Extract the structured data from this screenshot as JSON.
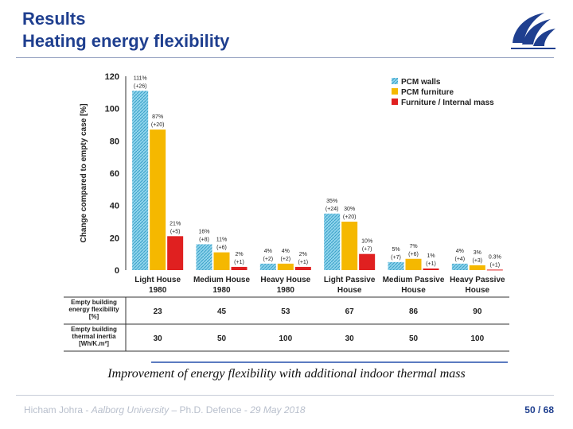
{
  "header": {
    "title_line1": "Results",
    "title_line2": "Heating energy flexibility"
  },
  "caption": "Improvement of energy flexibility with additional indoor thermal mass",
  "footer": {
    "author": "Hicham Johra",
    "institution": "Aalborg University",
    "event": "Ph.D. Defence",
    "date": "29 May 2018",
    "page_current": "50",
    "page_total": "68"
  },
  "colors": {
    "title": "#1f3f8f",
    "pcm_walls": "#5bc0de",
    "pcm_furniture": "#f5b800",
    "furniture_internal_mass": "#e02020"
  },
  "chart_data": {
    "type": "bar",
    "ylabel": "Change compared to empty case [%]",
    "ylim": [
      0,
      120
    ],
    "yticks": [
      0,
      20,
      40,
      60,
      80,
      100,
      120
    ],
    "categories": [
      "Light House\n1980",
      "Medium House\n1980",
      "Heavy House\n1980",
      "Light Passive\nHouse",
      "Medium Passive\nHouse",
      "Heavy Passive\nHouse"
    ],
    "legend_position": "top-right",
    "series": [
      {
        "name": "PCM walls",
        "values": [
          111,
          16,
          4,
          35,
          5,
          4
        ],
        "labels": [
          "111%\n(+26)",
          "16%\n(+8)",
          "4%\n(+2)",
          "35%\n(+24)",
          "5%\n(+7)",
          "4%\n(+4)"
        ]
      },
      {
        "name": "PCM furniture",
        "values": [
          87,
          11,
          4,
          30,
          7,
          3
        ],
        "labels": [
          "87%\n(+20)",
          "11%\n(+6)",
          "4%\n(+2)",
          "30%\n(+20)",
          "7%\n(+6)",
          "3%\n(+3)"
        ]
      },
      {
        "name": "Furniture / Internal mass",
        "values": [
          21,
          2,
          2,
          10,
          1,
          0.3
        ],
        "labels": [
          "21%\n(+5)",
          "2%\n(+1)",
          "2%\n(+1)",
          "10%\n(+7)",
          "1%\n(+1)",
          "0.3%\n(+1)"
        ]
      }
    ],
    "table": {
      "rows": [
        {
          "label": "Empty building\nenergy flexibility\n[%]",
          "values": [
            "23",
            "45",
            "53",
            "67",
            "86",
            "90"
          ]
        },
        {
          "label": "Empty building\nthermal inertia\n[Wh/K.m²]",
          "values": [
            "30",
            "50",
            "100",
            "30",
            "50",
            "100"
          ]
        }
      ]
    }
  }
}
